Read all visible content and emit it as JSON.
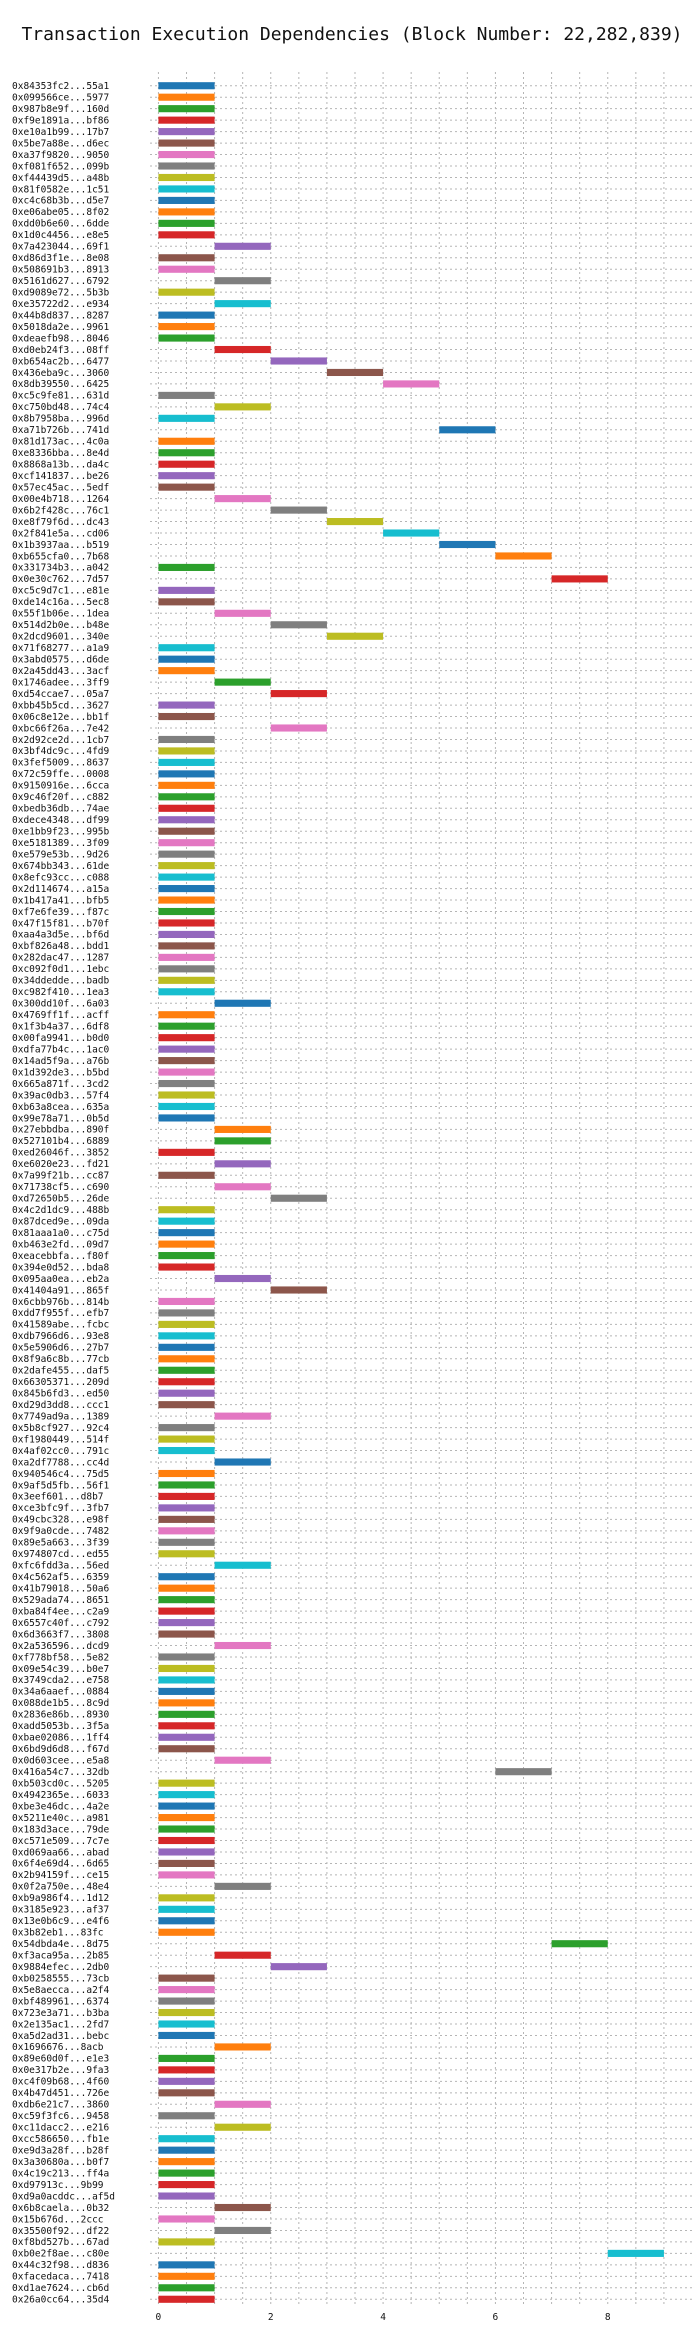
{
  "chart_data": {
    "type": "bar",
    "orientation": "horizontal-gantt",
    "title": "Transaction Execution Dependencies (Block Number: 22,282,839)",
    "xlabel": "",
    "ylabel": "",
    "xlim": [
      -0.15,
      9.5
    ],
    "x_ticks": [
      0,
      2,
      4,
      6,
      8
    ],
    "grid": true,
    "palette": [
      "#1f77b4",
      "#ff7f0e",
      "#2ca02c",
      "#d62728",
      "#9467bd",
      "#8c564b",
      "#e377c2",
      "#7f7f7f",
      "#bcbd22",
      "#17becf"
    ],
    "transactions": [
      {
        "label": "0x84353fc2...55a1",
        "start": 0
      },
      {
        "label": "0x099566ce...5977",
        "start": 0
      },
      {
        "label": "0x987b8e9f...160d",
        "start": 0
      },
      {
        "label": "0xf9e1891a...bf86",
        "start": 0
      },
      {
        "label": "0xe10a1b99...17b7",
        "start": 0
      },
      {
        "label": "0x5be7a88e...d6ec",
        "start": 0
      },
      {
        "label": "0xa37f9820...9050",
        "start": 0
      },
      {
        "label": "0xf081f652...099b",
        "start": 0
      },
      {
        "label": "0xf44439d5...a48b",
        "start": 0
      },
      {
        "label": "0x81f0582e...1c51",
        "start": 0
      },
      {
        "label": "0xc4c68b3b...d5e7",
        "start": 0
      },
      {
        "label": "0xe06abe05...8f02",
        "start": 0
      },
      {
        "label": "0xdd0b6e60...6dde",
        "start": 0
      },
      {
        "label": "0x1d0c4456...e8e5",
        "start": 0
      },
      {
        "label": "0x7a423044...69f1",
        "start": 1
      },
      {
        "label": "0xd86d3f1e...8e08",
        "start": 0
      },
      {
        "label": "0x508691b3...8913",
        "start": 0
      },
      {
        "label": "0x5161d627...6792",
        "start": 1
      },
      {
        "label": "0xd9089e72...5b3b",
        "start": 0
      },
      {
        "label": "0xe35722d2...e934",
        "start": 1
      },
      {
        "label": "0x44b8d837...8287",
        "start": 0
      },
      {
        "label": "0x5018da2e...9961",
        "start": 0
      },
      {
        "label": "0xdeaefb98...8046",
        "start": 0
      },
      {
        "label": "0xd0eb24f3...08ff",
        "start": 1
      },
      {
        "label": "0xb654ac2b...6477",
        "start": 2
      },
      {
        "label": "0x436eba9c...3060",
        "start": 3
      },
      {
        "label": "0x8db39550...6425",
        "start": 4
      },
      {
        "label": "0xc5c9fe81...631d",
        "start": 0
      },
      {
        "label": "0xc750bd48...74c4",
        "start": 1
      },
      {
        "label": "0x8b7958ba...996d",
        "start": 0
      },
      {
        "label": "0xa71b726b...741d",
        "start": 5
      },
      {
        "label": "0x81d173ac...4c0a",
        "start": 0
      },
      {
        "label": "0xe8336bba...8e4d",
        "start": 0
      },
      {
        "label": "0x8868a13b...da4c",
        "start": 0
      },
      {
        "label": "0xcf141837...be26",
        "start": 0
      },
      {
        "label": "0x57ec45ac...5edf",
        "start": 0
      },
      {
        "label": "0x00e4b718...1264",
        "start": 1
      },
      {
        "label": "0x6b2f428c...76c1",
        "start": 2
      },
      {
        "label": "0xe8f79f6d...dc43",
        "start": 3
      },
      {
        "label": "0x2f841e5a...cd06",
        "start": 4
      },
      {
        "label": "0x1b3937aa...b519",
        "start": 5
      },
      {
        "label": "0xb655cfa0...7b68",
        "start": 6
      },
      {
        "label": "0x331734b3...a042",
        "start": 0
      },
      {
        "label": "0x0e30c762...7d57",
        "start": 7
      },
      {
        "label": "0xc5c9d7c1...e81e",
        "start": 0
      },
      {
        "label": "0xde14c16a...5ec8",
        "start": 0
      },
      {
        "label": "0x55f1b06e...1dea",
        "start": 1
      },
      {
        "label": "0x514d2b0e...b48e",
        "start": 2
      },
      {
        "label": "0x2dcd9601...340e",
        "start": 3
      },
      {
        "label": "0x71f68277...a1a9",
        "start": 0
      },
      {
        "label": "0x3abd0575...d6de",
        "start": 0
      },
      {
        "label": "0x2a45dd43...3acf",
        "start": 0
      },
      {
        "label": "0x1746adee...3ff9",
        "start": 1
      },
      {
        "label": "0xd54ccae7...05a7",
        "start": 2
      },
      {
        "label": "0xbb45b5cd...3627",
        "start": 0
      },
      {
        "label": "0x06c8e12e...bb1f",
        "start": 0
      },
      {
        "label": "0xbc66f26a...7e42",
        "start": 2
      },
      {
        "label": "0x2d92ce2d...1cb7",
        "start": 0
      },
      {
        "label": "0x3bf4dc9c...4fd9",
        "start": 0
      },
      {
        "label": "0x3fef5009...8637",
        "start": 0
      },
      {
        "label": "0x72c59ffe...0008",
        "start": 0
      },
      {
        "label": "0x9150916e...6cca",
        "start": 0
      },
      {
        "label": "0x9c46f20f...c882",
        "start": 0
      },
      {
        "label": "0xbedb36db...74ae",
        "start": 0
      },
      {
        "label": "0xdece4348...df99",
        "start": 0
      },
      {
        "label": "0xe1bb9f23...995b",
        "start": 0
      },
      {
        "label": "0xe5181389...3f09",
        "start": 0
      },
      {
        "label": "0xe579e53b...9d26",
        "start": 0
      },
      {
        "label": "0x674bb343...61de",
        "start": 0
      },
      {
        "label": "0x8efc93cc...c088",
        "start": 0
      },
      {
        "label": "0x2d114674...a15a",
        "start": 0
      },
      {
        "label": "0x1b417a41...bfb5",
        "start": 0
      },
      {
        "label": "0xf7e6fe39...f87c",
        "start": 0
      },
      {
        "label": "0x47f15f81...b70f",
        "start": 0
      },
      {
        "label": "0xaa4a3d5e...bf6d",
        "start": 0
      },
      {
        "label": "0xbf826a48...bdd1",
        "start": 0
      },
      {
        "label": "0x282dac47...1287",
        "start": 0
      },
      {
        "label": "0xc092f0d1...1ebc",
        "start": 0
      },
      {
        "label": "0x34ddedde...badb",
        "start": 0
      },
      {
        "label": "0xc982f410...1ea3",
        "start": 0
      },
      {
        "label": "0x300dd10f...6a03",
        "start": 1
      },
      {
        "label": "0x4769ff1f...acff",
        "start": 0
      },
      {
        "label": "0x1f3b4a37...6df8",
        "start": 0
      },
      {
        "label": "0x00fa9941...b0d0",
        "start": 0
      },
      {
        "label": "0xdfa77b4c...1ac0",
        "start": 0
      },
      {
        "label": "0x14ad5f9a...a76b",
        "start": 0
      },
      {
        "label": "0x1d392de3...b5bd",
        "start": 0
      },
      {
        "label": "0x665a871f...3cd2",
        "start": 0
      },
      {
        "label": "0x39ac0db3...57f4",
        "start": 0
      },
      {
        "label": "0xb63a8cea...635a",
        "start": 0
      },
      {
        "label": "0x99e78a71...0b5d",
        "start": 0
      },
      {
        "label": "0x27ebbdba...890f",
        "start": 1
      },
      {
        "label": "0x527101b4...6889",
        "start": 1
      },
      {
        "label": "0xed26046f...3852",
        "start": 0
      },
      {
        "label": "0xe6020e23...fd21",
        "start": 1
      },
      {
        "label": "0x7a99f21b...cc87",
        "start": 0
      },
      {
        "label": "0x71738cf5...c690",
        "start": 1
      },
      {
        "label": "0xd72650b5...26de",
        "start": 2
      },
      {
        "label": "0x4c2d1dc9...488b",
        "start": 0
      },
      {
        "label": "0x87dced9e...09da",
        "start": 0
      },
      {
        "label": "0x81aaa1a0...c75d",
        "start": 0
      },
      {
        "label": "0xb463e2fd...09d7",
        "start": 0
      },
      {
        "label": "0xeacebbfa...f80f",
        "start": 0
      },
      {
        "label": "0x394e0d52...bda8",
        "start": 0
      },
      {
        "label": "0x095aa0ea...eb2a",
        "start": 1
      },
      {
        "label": "0x41404a91...865f",
        "start": 2
      },
      {
        "label": "0x6cbb976b...814b",
        "start": 0
      },
      {
        "label": "0xdd7f955f...efb7",
        "start": 0
      },
      {
        "label": "0x41589abe...fcbc",
        "start": 0
      },
      {
        "label": "0xdb7966d6...93e8",
        "start": 0
      },
      {
        "label": "0x5e5906d6...27b7",
        "start": 0
      },
      {
        "label": "0x8f9a6c8b...77cb",
        "start": 0
      },
      {
        "label": "0x2dafe455...daf5",
        "start": 0
      },
      {
        "label": "0x66305371...209d",
        "start": 0
      },
      {
        "label": "0x845b6fd3...ed50",
        "start": 0
      },
      {
        "label": "0xd29d3dd8...ccc1",
        "start": 0
      },
      {
        "label": "0x7749ad9a...1389",
        "start": 1
      },
      {
        "label": "0x5b8cf927...92c4",
        "start": 0
      },
      {
        "label": "0xf1980449...514f",
        "start": 0
      },
      {
        "label": "0x4af02cc0...791c",
        "start": 0
      },
      {
        "label": "0xa2df7788...cc4d",
        "start": 1
      },
      {
        "label": "0x940546c4...75d5",
        "start": 0
      },
      {
        "label": "0x9af5d5fb...56f1",
        "start": 0
      },
      {
        "label": "0x3eef601...d8b7",
        "start": 0
      },
      {
        "label": "0xce3bfc9f...3fb7",
        "start": 0
      },
      {
        "label": "0x49cbc328...e98f",
        "start": 0
      },
      {
        "label": "0x9f9a0cde...7482",
        "start": 0
      },
      {
        "label": "0x89e5a663...3f39",
        "start": 0
      },
      {
        "label": "0x974807cd...ed55",
        "start": 0
      },
      {
        "label": "0xfc6fdd3a...56ed",
        "start": 1
      },
      {
        "label": "0x4c562af5...6359",
        "start": 0
      },
      {
        "label": "0x41b79018...50a6",
        "start": 0
      },
      {
        "label": "0x529ada74...8651",
        "start": 0
      },
      {
        "label": "0xba84f4ee...c2a9",
        "start": 0
      },
      {
        "label": "0x6557c40f...c792",
        "start": 0
      },
      {
        "label": "0x6d3663f7...3808",
        "start": 0
      },
      {
        "label": "0x2a536596...dcd9",
        "start": 1
      },
      {
        "label": "0xf778bf58...5e82",
        "start": 0
      },
      {
        "label": "0x09e54c39...b0e7",
        "start": 0
      },
      {
        "label": "0x3749cda2...e758",
        "start": 0
      },
      {
        "label": "0x34a6aaef...0884",
        "start": 0
      },
      {
        "label": "0x088de1b5...8c9d",
        "start": 0
      },
      {
        "label": "0x2836e86b...8930",
        "start": 0
      },
      {
        "label": "0xadd5053b...3f5a",
        "start": 0
      },
      {
        "label": "0xbae02086...1ff4",
        "start": 0
      },
      {
        "label": "0x6bd9d6d8...f67d",
        "start": 0
      },
      {
        "label": "0x0d603cee...e5a8",
        "start": 1
      },
      {
        "label": "0x416a54c7...32db",
        "start": 6
      },
      {
        "label": "0xb503cd0c...5205",
        "start": 0
      },
      {
        "label": "0x4942365e...6033",
        "start": 0
      },
      {
        "label": "0xbe3e46dc...4a2e",
        "start": 0
      },
      {
        "label": "0x5211e40c...a981",
        "start": 0
      },
      {
        "label": "0x183d3ace...79de",
        "start": 0
      },
      {
        "label": "0xc571e509...7c7e",
        "start": 0
      },
      {
        "label": "0xd069aa66...abad",
        "start": 0
      },
      {
        "label": "0x6f4e69d4...6d65",
        "start": 0
      },
      {
        "label": "0x2b94159f...ce15",
        "start": 0
      },
      {
        "label": "0x0f2a750e...48e4",
        "start": 1
      },
      {
        "label": "0xb9a986f4...1d12",
        "start": 0
      },
      {
        "label": "0x3185e923...af37",
        "start": 0
      },
      {
        "label": "0x13e0b6c9...e4f6",
        "start": 0
      },
      {
        "label": "0x3b82eb1...83fc",
        "start": 0
      },
      {
        "label": "0x54dbda4e...8d75",
        "start": 7
      },
      {
        "label": "0xf3aca95a...2b85",
        "start": 1
      },
      {
        "label": "0x9884efec...2db0",
        "start": 2
      },
      {
        "label": "0xb0258555...73cb",
        "start": 0
      },
      {
        "label": "0x5e8aecca...a2f4",
        "start": 0
      },
      {
        "label": "0xbf489961...6374",
        "start": 0
      },
      {
        "label": "0x723e3a71...b3ba",
        "start": 0
      },
      {
        "label": "0x2e135ac1...2fd7",
        "start": 0
      },
      {
        "label": "0xa5d2ad31...bebc",
        "start": 0
      },
      {
        "label": "0x1696676...8acb",
        "start": 1
      },
      {
        "label": "0x89e60d0f...e1e3",
        "start": 0
      },
      {
        "label": "0x0e317b2e...9fa3",
        "start": 0
      },
      {
        "label": "0xc4f09b68...4f60",
        "start": 0
      },
      {
        "label": "0x4b47d451...726e",
        "start": 0
      },
      {
        "label": "0xdb6e21c7...3860",
        "start": 1
      },
      {
        "label": "0xc59f3fc6...9458",
        "start": 0
      },
      {
        "label": "0xc11dacc2...e216",
        "start": 1
      },
      {
        "label": "0xcc586650...fb1e",
        "start": 0
      },
      {
        "label": "0xe9d3a28f...b28f",
        "start": 0
      },
      {
        "label": "0x3a30680a...b0f7",
        "start": 0
      },
      {
        "label": "0x4c19c213...ff4a",
        "start": 0
      },
      {
        "label": "0xd97913c...9b99",
        "start": 0
      },
      {
        "label": "0xd9a0acddc...af5d",
        "start": 0
      },
      {
        "label": "0x6b8caela...0b32",
        "start": 1
      },
      {
        "label": "0x15b676d...2ccc",
        "start": 0
      },
      {
        "label": "0x35500f92...df22",
        "start": 1
      },
      {
        "label": "0xf8bd527b...67ad",
        "start": 0
      },
      {
        "label": "0xb0e2f8ae...c80e",
        "start": 8
      },
      {
        "label": "0x44c32f98...d836",
        "start": 0
      },
      {
        "label": "0xfacedaca...7418",
        "start": 0
      },
      {
        "label": "0xd1ae7624...cb6d",
        "start": 0
      },
      {
        "label": "0x26a0cc64...35d4",
        "start": 0
      }
    ]
  }
}
